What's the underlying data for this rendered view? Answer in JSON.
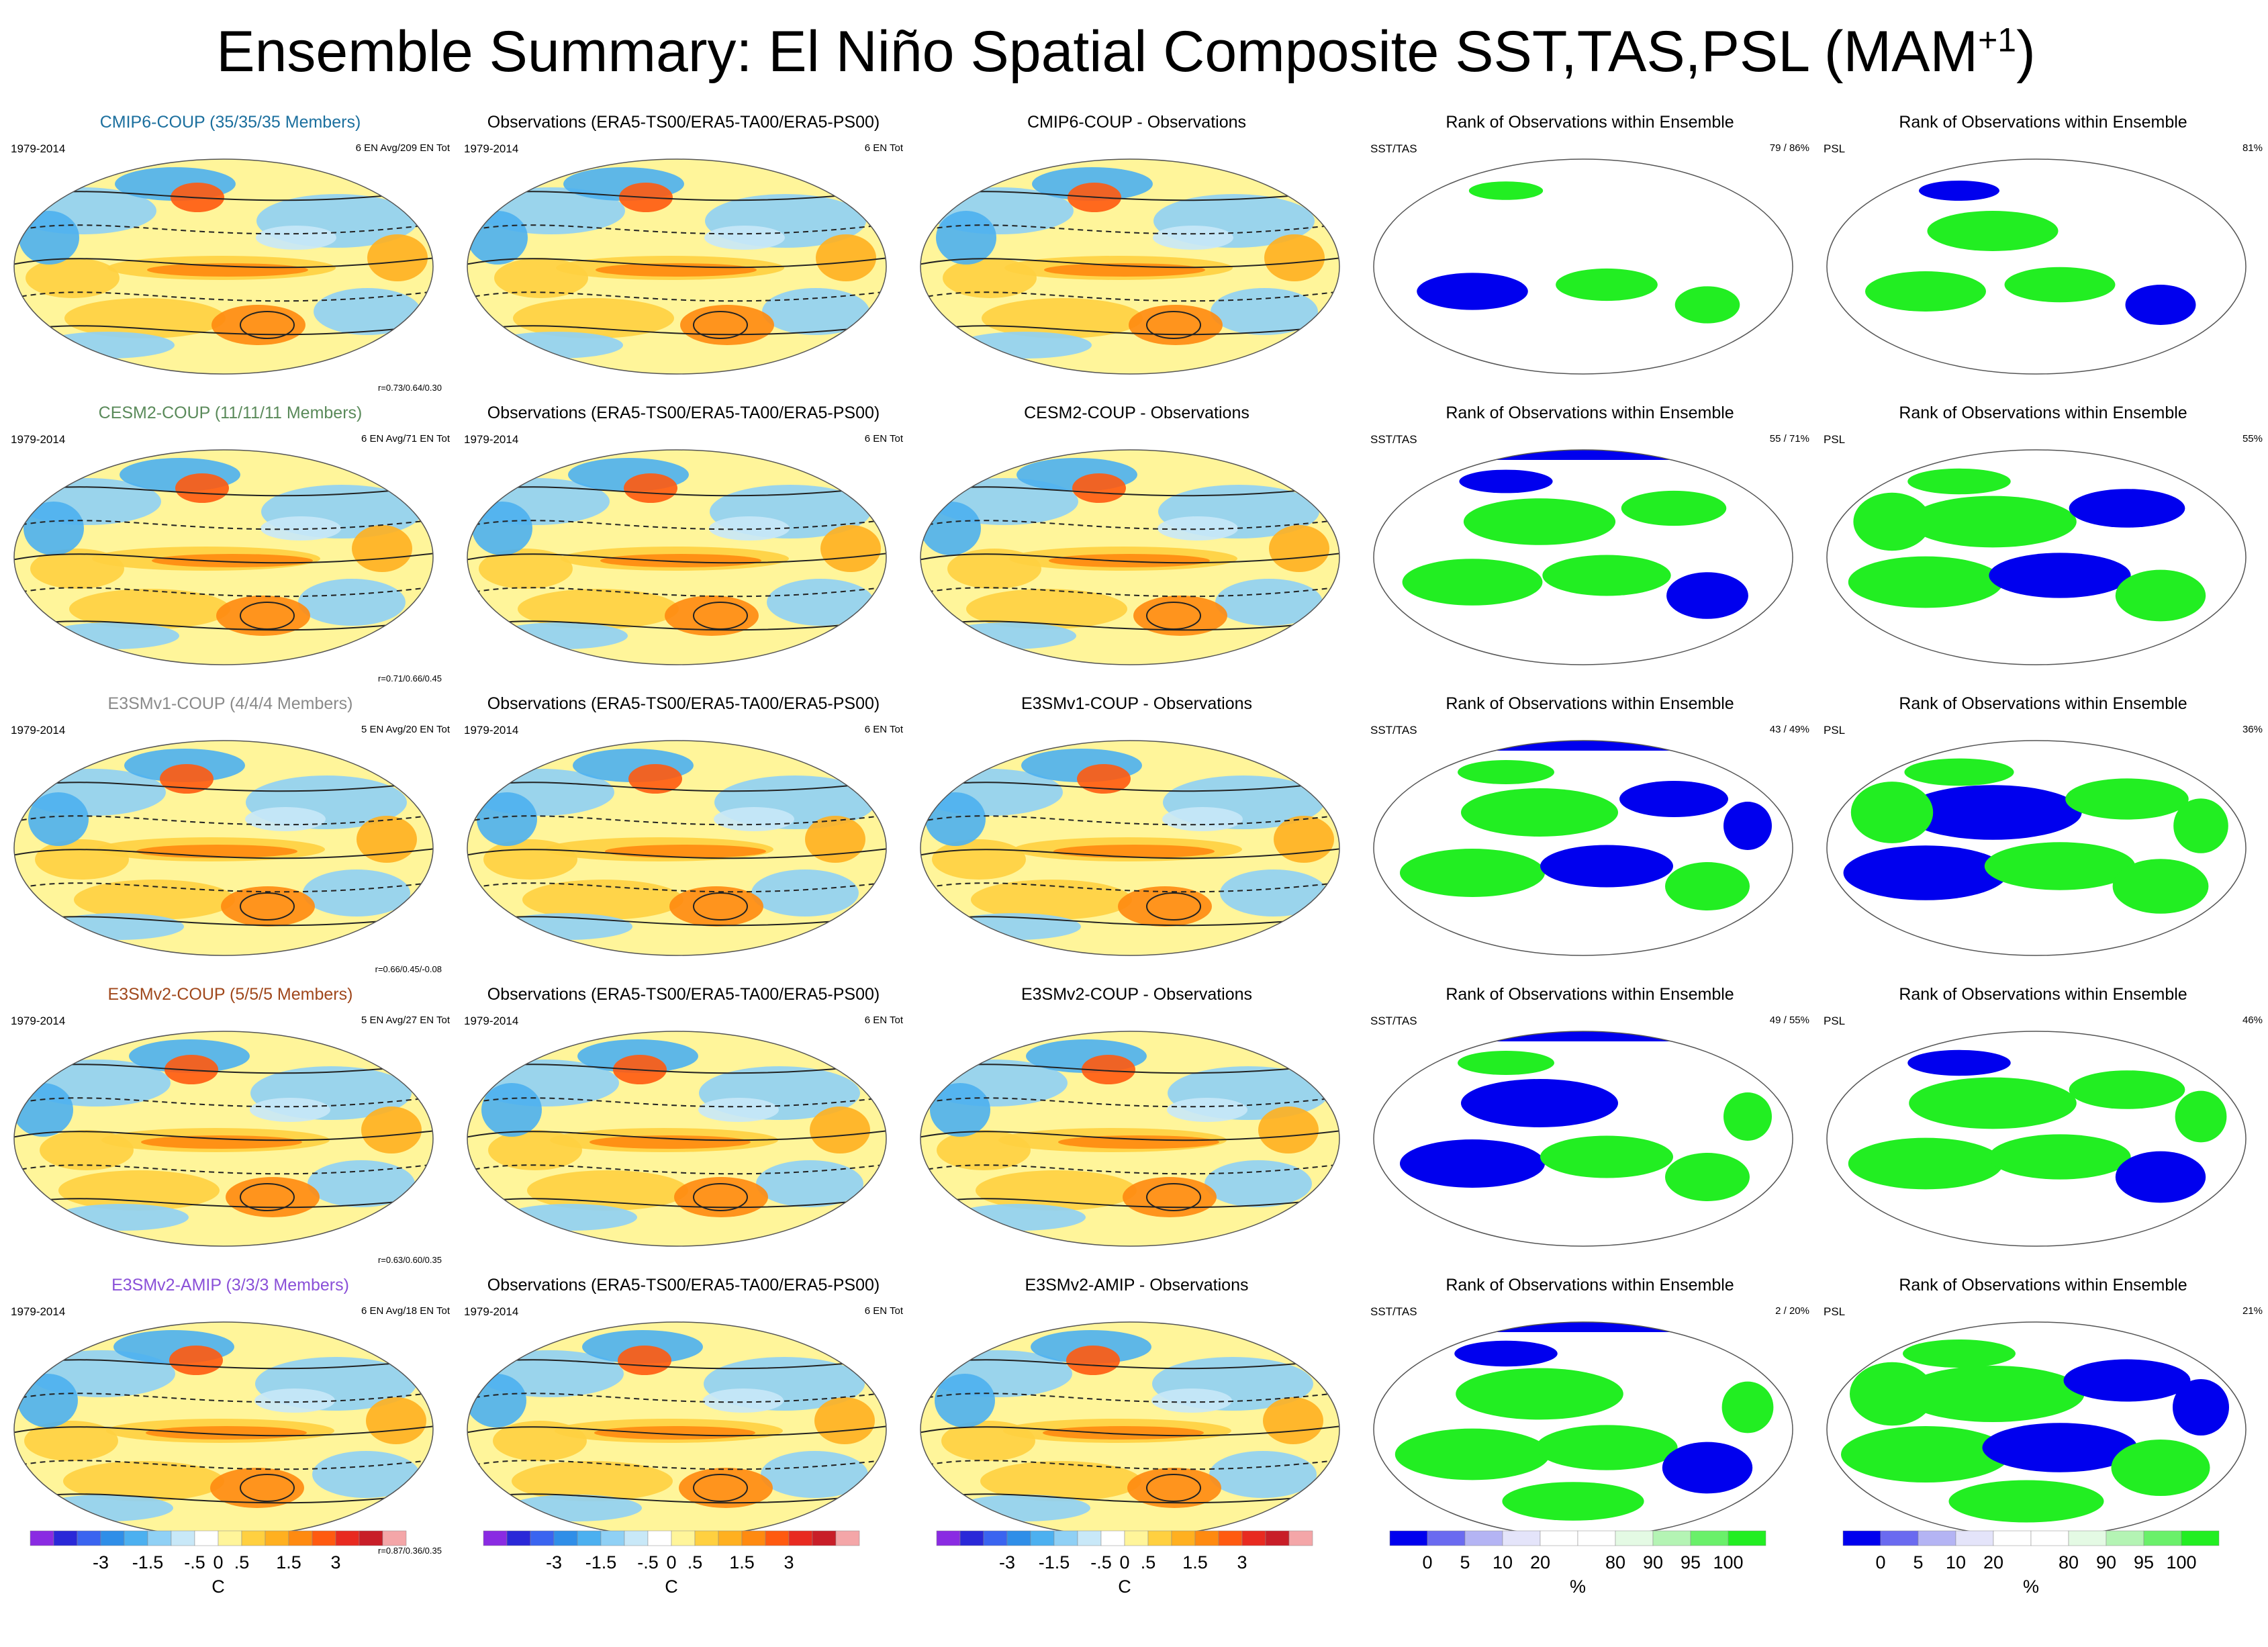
{
  "title": "Ensemble Summary: El Niño Spatial Composite SST,TAS,PSL (MAM",
  "title_sup": "+1",
  "colors": {
    "cmip6": "#1b6f9e",
    "cesm2": "#5a8a5a",
    "e3smv1": "#8a8a8a",
    "e3smv2": "#a0481c",
    "amip": "#8a50d8",
    "rank_blue": "#0000ee",
    "rank_green": "#22ee22"
  },
  "rows": [
    {
      "model": {
        "title": "CMIP6-COUP (35/35/35 Members)",
        "color_key": "cmip6",
        "years": "1979-2014",
        "info": "6 EN Avg/209 EN Tot",
        "corr": "r=0.73/0.64/0.30"
      },
      "obs": {
        "title": "Observations (ERA5-TS00/ERA5-TA00/ERA5-PS00)",
        "years": "1979-2014",
        "info": "6 EN Tot"
      },
      "diff": {
        "title": "CMIP6-COUP - Observations"
      },
      "rank_sst": {
        "title": "Rank of Observations within Ensemble",
        "label": "SST/TAS",
        "pct": "79 /  86%"
      },
      "rank_psl": {
        "title": "Rank of Observations within Ensemble",
        "label": "PSL",
        "pct": "81%"
      }
    },
    {
      "model": {
        "title": "CESM2-COUP (11/11/11 Members)",
        "color_key": "cesm2",
        "years": "1979-2014",
        "info": "6 EN Avg/71 EN Tot",
        "corr": "r=0.71/0.66/0.45"
      },
      "obs": {
        "title": "Observations (ERA5-TS00/ERA5-TA00/ERA5-PS00)",
        "years": "1979-2014",
        "info": "6 EN Tot"
      },
      "diff": {
        "title": "CESM2-COUP - Observations"
      },
      "rank_sst": {
        "title": "Rank of Observations within Ensemble",
        "label": "SST/TAS",
        "pct": "55 /  71%"
      },
      "rank_psl": {
        "title": "Rank of Observations within Ensemble",
        "label": "PSL",
        "pct": "55%"
      }
    },
    {
      "model": {
        "title": "E3SMv1-COUP (4/4/4 Members)",
        "color_key": "e3smv1",
        "years": "1979-2014",
        "info": "5 EN Avg/20 EN Tot",
        "corr": "r=0.66/0.45/-0.08"
      },
      "obs": {
        "title": "Observations (ERA5-TS00/ERA5-TA00/ERA5-PS00)",
        "years": "1979-2014",
        "info": "6 EN Tot"
      },
      "diff": {
        "title": "E3SMv1-COUP - Observations"
      },
      "rank_sst": {
        "title": "Rank of Observations within Ensemble",
        "label": "SST/TAS",
        "pct": "43 /  49%"
      },
      "rank_psl": {
        "title": "Rank of Observations within Ensemble",
        "label": "PSL",
        "pct": "36%"
      }
    },
    {
      "model": {
        "title": "E3SMv2-COUP (5/5/5 Members)",
        "color_key": "e3smv2",
        "years": "1979-2014",
        "info": "5 EN Avg/27 EN Tot",
        "corr": "r=0.63/0.60/0.35"
      },
      "obs": {
        "title": "Observations (ERA5-TS00/ERA5-TA00/ERA5-PS00)",
        "years": "1979-2014",
        "info": "6 EN Tot"
      },
      "diff": {
        "title": "E3SMv2-COUP - Observations"
      },
      "rank_sst": {
        "title": "Rank of Observations within Ensemble",
        "label": "SST/TAS",
        "pct": "49 /  55%"
      },
      "rank_psl": {
        "title": "Rank of Observations within Ensemble",
        "label": "PSL",
        "pct": "46%"
      }
    },
    {
      "model": {
        "title": "E3SMv2-AMIP (3/3/3 Members)",
        "color_key": "amip",
        "years": "1979-2014",
        "info": "6 EN Avg/18 EN Tot",
        "corr": "r=0.87/0.36/0.35"
      },
      "obs": {
        "title": "Observations (ERA5-TS00/ERA5-TA00/ERA5-PS00)",
        "years": "1979-2014",
        "info": "6 EN Tot"
      },
      "diff": {
        "title": "E3SMv2-AMIP - Observations"
      },
      "rank_sst": {
        "title": "Rank of Observations within Ensemble",
        "label": "SST/TAS",
        "pct": "2 /  20%"
      },
      "rank_psl": {
        "title": "Rank of Observations within Ensemble",
        "label": "PSL",
        "pct": "21%"
      }
    }
  ],
  "chart_data": {
    "type": "heatmap",
    "projection": "Robinson (Pacific-centered global maps)",
    "temperature_colorbar": {
      "ticks": [
        "-3",
        "-1.5",
        "-.5",
        "0",
        ".5",
        "1.5",
        "3"
      ],
      "unit": "C",
      "colors": [
        "#8a2be2",
        "#2a28d8",
        "#3a64f0",
        "#2f8ee8",
        "#4cb0f0",
        "#8fd0f5",
        "#c8e8f8",
        "#ffffff",
        "#fff59a",
        "#ffd040",
        "#ffb020",
        "#ff8a10",
        "#ff5a10",
        "#e82a20",
        "#c81e28",
        "#f4a6a8"
      ]
    },
    "rank_colorbar": {
      "ticks": [
        "0",
        "5",
        "10",
        "20",
        "80",
        "90",
        "95",
        "100"
      ],
      "unit": "%",
      "colors": [
        "#0000ee",
        "#6a6af0",
        "#b4b4f4",
        "#e4e4fa",
        "#ffffff",
        "#ffffff",
        "#e4fae4",
        "#b4f4b4",
        "#6af06a",
        "#22ee22"
      ]
    },
    "rank_summary": [
      {
        "model": "CMIP6-COUP",
        "sst_tas": [
          79,
          86
        ],
        "psl": 81
      },
      {
        "model": "CESM2-COUP",
        "sst_tas": [
          55,
          71
        ],
        "psl": 55
      },
      {
        "model": "E3SMv1-COUP",
        "sst_tas": [
          43,
          49
        ],
        "psl": 36
      },
      {
        "model": "E3SMv2-COUP",
        "sst_tas": [
          49,
          55
        ],
        "psl": 46
      },
      {
        "model": "E3SMv2-AMIP",
        "sst_tas": [
          2,
          20
        ],
        "psl": 21
      }
    ],
    "pattern_correlations": [
      {
        "model": "CMIP6-COUP",
        "r": [
          0.73,
          0.64,
          0.3
        ]
      },
      {
        "model": "CESM2-COUP",
        "r": [
          0.71,
          0.66,
          0.45
        ]
      },
      {
        "model": "E3SMv1-COUP",
        "r": [
          0.66,
          0.45,
          -0.08
        ]
      },
      {
        "model": "E3SMv2-COUP",
        "r": [
          0.63,
          0.6,
          0.35
        ]
      },
      {
        "model": "E3SMv2-AMIP",
        "r": [
          0.87,
          0.36,
          0.35
        ]
      }
    ]
  }
}
